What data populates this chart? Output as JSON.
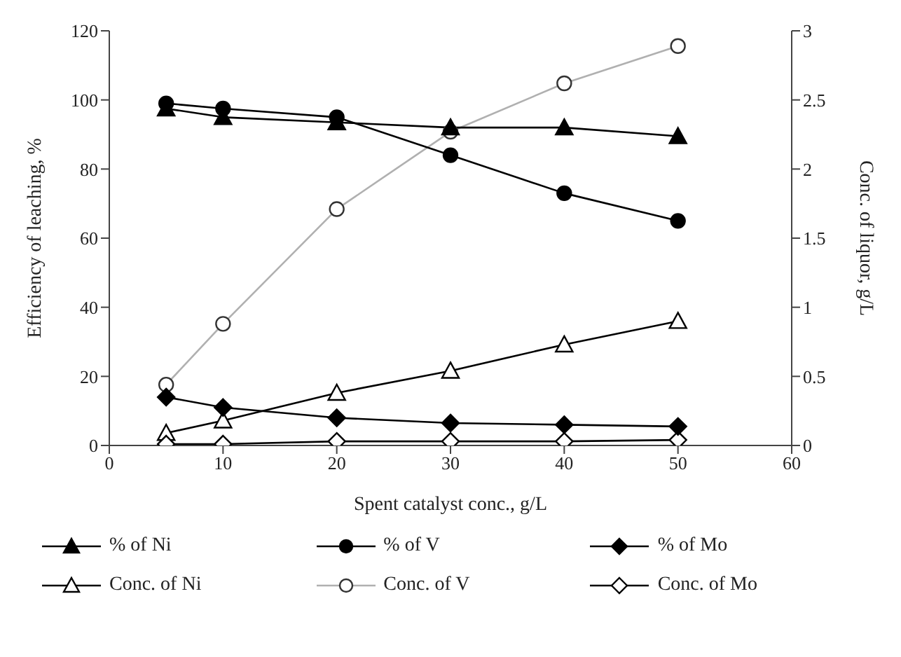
{
  "chart_data": {
    "type": "line",
    "xlabel": "Spent catalyst conc., g/L",
    "ylabel": "Efficiency of leaching, %",
    "y2label": "Conc. of liquor, g/L",
    "x": [
      5,
      10,
      20,
      30,
      40,
      50
    ],
    "series": [
      {
        "name": "% of Ni",
        "color": "#000000",
        "marker": "triangle",
        "values": [
          97.5,
          95,
          93.5,
          92,
          92,
          89.5
        ]
      },
      {
        "name": "% of V",
        "color": "#000000",
        "marker": "circle",
        "values": [
          99,
          97.5,
          95,
          84,
          73,
          65
        ]
      },
      {
        "name": "% of Mo",
        "color": "#000000",
        "marker": "diamond",
        "values": [
          14,
          11,
          8,
          6.5,
          6,
          5.5
        ]
      },
      {
        "name": "Conc. of Ni",
        "color": "#000000",
        "marker": "triangle",
        "axis": "y2",
        "values": [
          0.09,
          0.18,
          0.38,
          0.54,
          0.73,
          0.9
        ]
      },
      {
        "name": "Conc. of V",
        "color": "#b0b0b0",
        "marker": "circle",
        "axis": "y2",
        "values": [
          0.44,
          0.88,
          1.71,
          2.27,
          2.62,
          2.89
        ]
      },
      {
        "name": "Conc. of Mo",
        "color": "#000000",
        "marker": "diamond",
        "axis": "y2",
        "values": [
          0.01,
          0.01,
          0.03,
          0.03,
          0.03,
          0.04
        ]
      }
    ],
    "xlim": [
      0,
      60
    ],
    "xticks": [
      0,
      10,
      20,
      30,
      40,
      50,
      60
    ],
    "ylim": [
      0,
      120
    ],
    "yticks": [
      0,
      20,
      40,
      60,
      80,
      100,
      120
    ],
    "y2lim": [
      0,
      3
    ],
    "y2ticks": [
      0,
      0.5,
      1,
      1.5,
      2,
      2.5,
      3
    ],
    "grid": false,
    "legend": "bottom",
    "line_style": "solid"
  }
}
